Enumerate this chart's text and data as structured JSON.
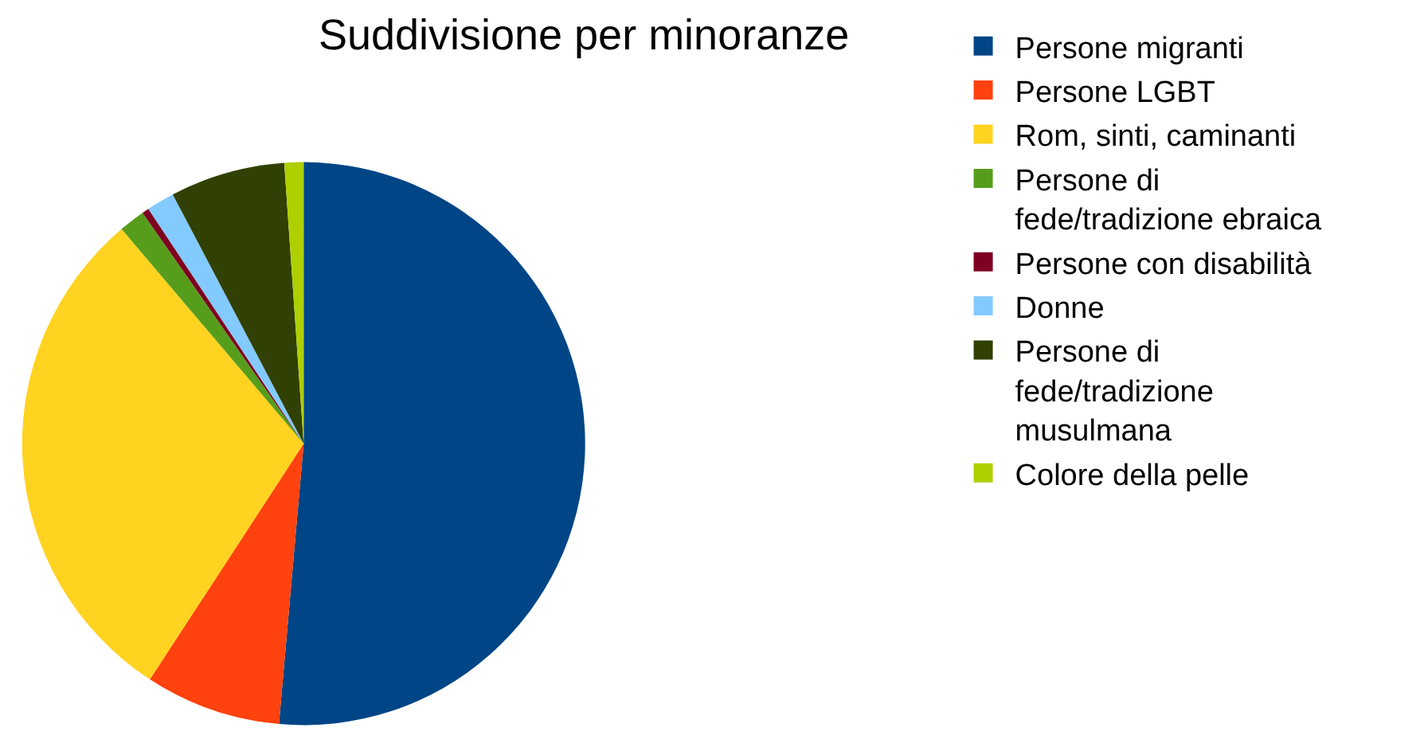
{
  "chart_data": {
    "type": "pie",
    "title": "Suddivisione per minoranze",
    "legend": "right",
    "categories": [
      "Persone migranti",
      "Persone LGBT",
      "Rom, sinti, caminanti",
      "Persone di fede/tradizione ebraica",
      "Persone con disabilità",
      "Donne",
      "Persone di fede/tradizione musulmana",
      "Colore della pelle"
    ],
    "values": [
      51.4,
      7.8,
      29.6,
      1.5,
      0.4,
      1.6,
      6.6,
      1.1
    ],
    "colors": [
      "#004586",
      "#ff420e",
      "#ffd320",
      "#579d1c",
      "#7e0021",
      "#83caff",
      "#314004",
      "#aecf00"
    ]
  }
}
